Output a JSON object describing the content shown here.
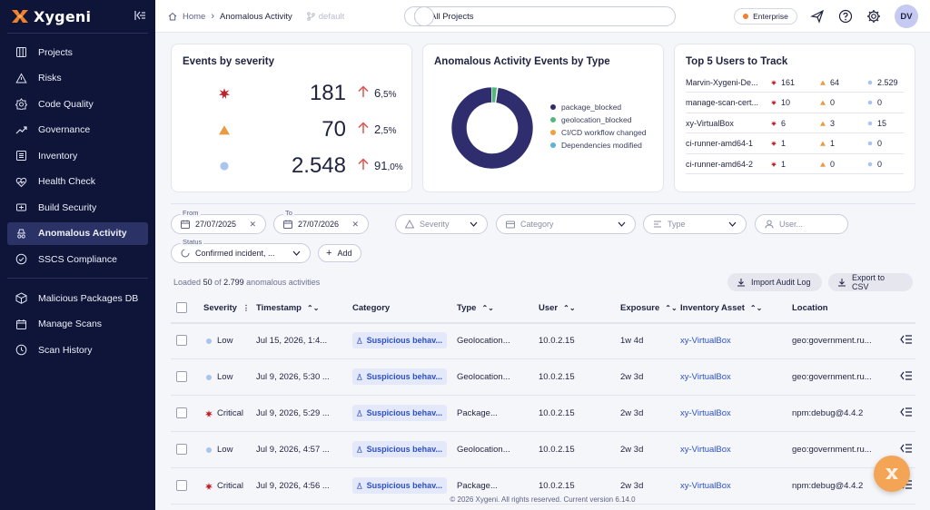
{
  "brand": {
    "name": "Xygeni",
    "accent": "#f07f2e",
    "sidebar_bg": "#0f1538"
  },
  "sidebar": {
    "items": [
      {
        "label": "Projects",
        "icon": "grid-icon"
      },
      {
        "label": "Risks",
        "icon": "warning-icon"
      },
      {
        "label": "Code Quality",
        "icon": "code-quality-icon"
      },
      {
        "label": "Governance",
        "icon": "trend-icon"
      },
      {
        "label": "Inventory",
        "icon": "list-icon"
      },
      {
        "label": "Health Check",
        "icon": "heartbeat-icon"
      },
      {
        "label": "Build Security",
        "icon": "build-icon"
      },
      {
        "label": "Anomalous Activity",
        "icon": "detective-icon",
        "active": true
      },
      {
        "label": "SSCS Compliance",
        "icon": "check-circle-icon"
      }
    ],
    "items2": [
      {
        "label": "Malicious Packages DB",
        "icon": "package-icon"
      },
      {
        "label": "Manage Scans",
        "icon": "calendar-icon"
      },
      {
        "label": "Scan History",
        "icon": "history-icon"
      }
    ]
  },
  "topbar": {
    "breadcrumb_home": "Home",
    "breadcrumb_current": "Anomalous Activity",
    "branch": "default",
    "project_select": "All Projects",
    "plan_badge": "Enterprise",
    "avatar_initials": "DV"
  },
  "severity_card": {
    "title": "Events by severity",
    "rows": [
      {
        "level": "critical",
        "count": "181",
        "change": "6",
        "change_dec": ",5%"
      },
      {
        "level": "high",
        "count": "70",
        "change": "2",
        "change_dec": ",5%"
      },
      {
        "level": "low",
        "count": "2.548",
        "change": "91",
        "change_dec": ",0%"
      }
    ],
    "colors": {
      "critical": "#c0212a",
      "high": "#e99a44",
      "low": "#a9c4ee",
      "up_arrow": "#e0524f"
    }
  },
  "type_card": {
    "title": "Anomalous Activity Events by Type",
    "legend": [
      {
        "label": "package_blocked",
        "color": "#2f2d6e"
      },
      {
        "label": "geolocation_blocked",
        "color": "#55b87a"
      },
      {
        "label": "CI/CD workflow changed",
        "color": "#f0a13c"
      },
      {
        "label": "Dependencies modified",
        "color": "#5ab4d6"
      }
    ]
  },
  "chart_data": {
    "type": "pie",
    "title": "Anomalous Activity Events by Type",
    "categories": [
      "package_blocked",
      "geolocation_blocked",
      "CI/CD workflow changed",
      "Dependencies modified"
    ],
    "values": [
      0.975,
      0.022,
      0.0015,
      0.0015
    ],
    "donut": true
  },
  "users_card": {
    "title": "Top 5 Users to Track",
    "rows": [
      {
        "user": "Marvin-Xygeni-De...",
        "critical": "161",
        "high": "64",
        "low": "2.529"
      },
      {
        "user": "manage-scan-cert...",
        "critical": "10",
        "high": "0",
        "low": "0"
      },
      {
        "user": "xy-VirtualBox",
        "critical": "6",
        "high": "3",
        "low": "15"
      },
      {
        "user": "ci-runner-amd64-1",
        "critical": "1",
        "high": "1",
        "low": "0"
      },
      {
        "user": "ci-runner-amd64-2",
        "critical": "1",
        "high": "0",
        "low": "0"
      }
    ]
  },
  "filters": {
    "from_label": "From",
    "from_value": "27/07/2025",
    "to_label": "To",
    "to_value": "27/07/2026",
    "severity": "Severity",
    "category": "Category",
    "type": "Type",
    "user": "User...",
    "status_label": "Status",
    "status_value": "Confirmed incident, ...",
    "add": "Add"
  },
  "summary": {
    "prefix": "Loaded",
    "loaded": "50",
    "of": "of",
    "total": "2.799",
    "suffix": "anomalous activities"
  },
  "actions": {
    "import": "Import Audit Log",
    "export": "Export to CSV"
  },
  "table": {
    "headers": {
      "severity": "Severity",
      "timestamp": "Timestamp",
      "category": "Category",
      "type": "Type",
      "user": "User",
      "exposure": "Exposure",
      "asset": "Inventory Asset",
      "location": "Location"
    },
    "rows": [
      {
        "severity": "Low",
        "sev": "low",
        "timestamp": "Jul 15, 2026, 1:4...",
        "category": "Suspicious behav...",
        "type": "Geolocation...",
        "user": "10.0.2.15",
        "exposure": "1w 4d",
        "asset": "xy-VirtualBox",
        "location": "geo:government.ru..."
      },
      {
        "severity": "Low",
        "sev": "low",
        "timestamp": "Jul 9, 2026, 5:30 ...",
        "category": "Suspicious behav...",
        "type": "Geolocation...",
        "user": "10.0.2.15",
        "exposure": "2w 3d",
        "asset": "xy-VirtualBox",
        "location": "geo:government.ru..."
      },
      {
        "severity": "Critical",
        "sev": "critical",
        "timestamp": "Jul 9, 2026, 5:29 ...",
        "category": "Suspicious behav...",
        "type": "Package...",
        "user": "10.0.2.15",
        "exposure": "2w 3d",
        "asset": "xy-VirtualBox",
        "location": "npm:debug@4.4.2"
      },
      {
        "severity": "Low",
        "sev": "low",
        "timestamp": "Jul 9, 2026, 4:57 ...",
        "category": "Suspicious behav...",
        "type": "Geolocation...",
        "user": "10.0.2.15",
        "exposure": "2w 3d",
        "asset": "xy-VirtualBox",
        "location": "geo:government.ru..."
      },
      {
        "severity": "Critical",
        "sev": "critical",
        "timestamp": "Jul 9, 2026, 4:56 ...",
        "category": "Suspicious behav...",
        "type": "Package...",
        "user": "10.0.2.15",
        "exposure": "2w 3d",
        "asset": "xy-VirtualBox",
        "location": "npm:debug@4.4.2"
      }
    ]
  },
  "footer": "© 2026 Xygeni. All rights reserved. Current version 6.14.0"
}
